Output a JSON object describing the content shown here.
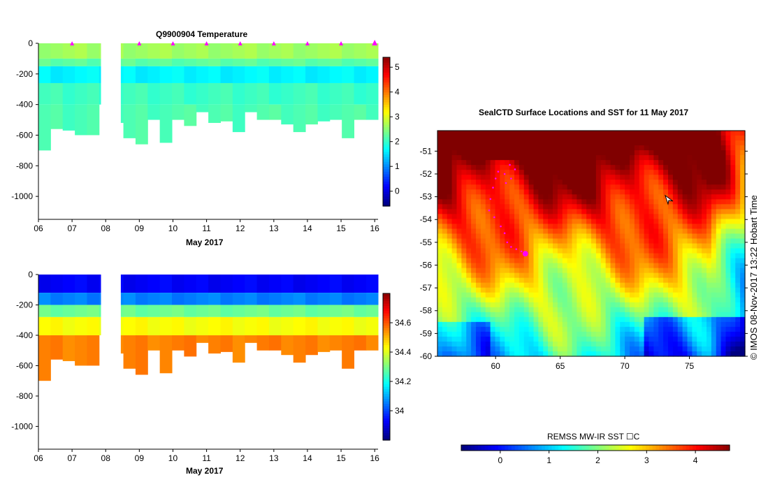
{
  "chart_data": [
    {
      "type": "heatmap",
      "title": "Q9900904  Temperature",
      "xlabel": "May 2017",
      "x_ticks": [
        "06",
        "07",
        "08",
        "09",
        "10",
        "11",
        "12",
        "13",
        "14",
        "15",
        "16"
      ],
      "xlim": [
        6,
        16.1
      ],
      "ylim": [
        -1150,
        0
      ],
      "y_ticks": [
        0,
        -200,
        -400,
        -600,
        -800,
        -1000
      ],
      "colorbar": {
        "min": -0.6,
        "max": 5.4,
        "ticks": [
          0,
          1,
          2,
          3,
          4,
          5
        ],
        "colormap": "jet"
      },
      "profile_markers_day": [
        7.0,
        9.0,
        10.0,
        11.0,
        12.0,
        13.0,
        14.0,
        15.0,
        16.0
      ],
      "max_depth_by_profile": [
        700,
        560,
        570,
        600,
        600,
        400,
        520,
        620,
        660,
        500,
        650,
        500,
        540,
        450,
        520,
        510,
        580,
        450,
        500,
        500,
        530,
        580,
        530,
        510,
        500,
        620,
        500,
        500
      ],
      "profile_day_start": 6.0,
      "profile_day_step": 0.3609,
      "gap_days": [
        7.85,
        8.45
      ],
      "layers": [
        {
          "depth_range": [
            0,
            100
          ],
          "value": 2.6
        },
        {
          "depth_range": [
            100,
            150
          ],
          "value": 2.2
        },
        {
          "depth_range": [
            150,
            260
          ],
          "value": 1.6
        },
        {
          "depth_range": [
            260,
            400
          ],
          "value": 2.0
        },
        {
          "depth_range": [
            400,
            700
          ],
          "value": 2.1
        }
      ]
    },
    {
      "type": "heatmap",
      "title": "",
      "xlabel": "May 2017",
      "x_ticks": [
        "06",
        "07",
        "08",
        "09",
        "10",
        "11",
        "12",
        "13",
        "14",
        "15",
        "16"
      ],
      "xlim": [
        6,
        16.1
      ],
      "ylim": [
        -1150,
        0
      ],
      "y_ticks": [
        0,
        -200,
        -400,
        -600,
        -800,
        -1000
      ],
      "colorbar": {
        "min": 33.8,
        "max": 34.8,
        "ticks": [
          34,
          34.2,
          34.4,
          34.6
        ],
        "colormap": "jet"
      },
      "max_depth_by_profile": [
        700,
        560,
        570,
        600,
        600,
        400,
        520,
        620,
        660,
        500,
        650,
        500,
        540,
        450,
        520,
        510,
        580,
        450,
        500,
        500,
        530,
        580,
        530,
        510,
        500,
        620,
        500,
        500
      ],
      "profile_day_start": 6.0,
      "profile_day_step": 0.3609,
      "gap_days": [
        7.85,
        8.45
      ],
      "layers": [
        {
          "depth_range": [
            0,
            120
          ],
          "value": 33.92
        },
        {
          "depth_range": [
            120,
            200
          ],
          "value": 34.05
        },
        {
          "depth_range": [
            200,
            280
          ],
          "value": 34.28
        },
        {
          "depth_range": [
            280,
            400
          ],
          "value": 34.42
        },
        {
          "depth_range": [
            400,
            700
          ],
          "value": 34.55
        }
      ]
    },
    {
      "type": "heatmap",
      "title": "SealCTD Surface Locations and SST for 11 May 2017",
      "x_ticks": [
        "60",
        "65",
        "70",
        "75"
      ],
      "x_tick_values": [
        60,
        65,
        70,
        75
      ],
      "xlim": [
        55.5,
        79.3
      ],
      "y_ticks": [
        "-51",
        "-52",
        "-53",
        "-54",
        "-55",
        "-56",
        "-57",
        "-58",
        "-59",
        "-60"
      ],
      "y_tick_values": [
        -51,
        -52,
        -53,
        -54,
        -55,
        -56,
        -57,
        -58,
        -59,
        -60
      ],
      "ylim": [
        -60,
        -50.1
      ],
      "colorbar": {
        "label": "REMSS MW-IR SST ☐C",
        "min": -0.8,
        "max": 4.7,
        "ticks": [
          0,
          1,
          2,
          3,
          4
        ],
        "colormap": "jet"
      },
      "track_points": [
        [
          60.2,
          -51.9
        ],
        [
          60.0,
          -52.2
        ],
        [
          59.8,
          -52.6
        ],
        [
          59.6,
          -53.1
        ],
        [
          59.5,
          -53.6
        ],
        [
          59.9,
          -53.9
        ],
        [
          60.4,
          -54.3
        ],
        [
          60.7,
          -54.6
        ],
        [
          60.9,
          -55.0
        ],
        [
          61.2,
          -55.2
        ],
        [
          61.6,
          -55.3
        ],
        [
          62.0,
          -55.4
        ],
        [
          62.3,
          -55.5
        ],
        [
          60.7,
          -52.0
        ],
        [
          61.1,
          -51.6
        ],
        [
          61.5,
          -51.8
        ],
        [
          60.8,
          -52.4
        ],
        [
          61.2,
          -52.2
        ]
      ],
      "last_position": [
        62.3,
        -55.5
      ],
      "marker_position": [
        73.4,
        -53.1
      ]
    }
  ],
  "sidebar_text": "©  IMOS 08-Nov-2017 13:22 Hobart Time"
}
